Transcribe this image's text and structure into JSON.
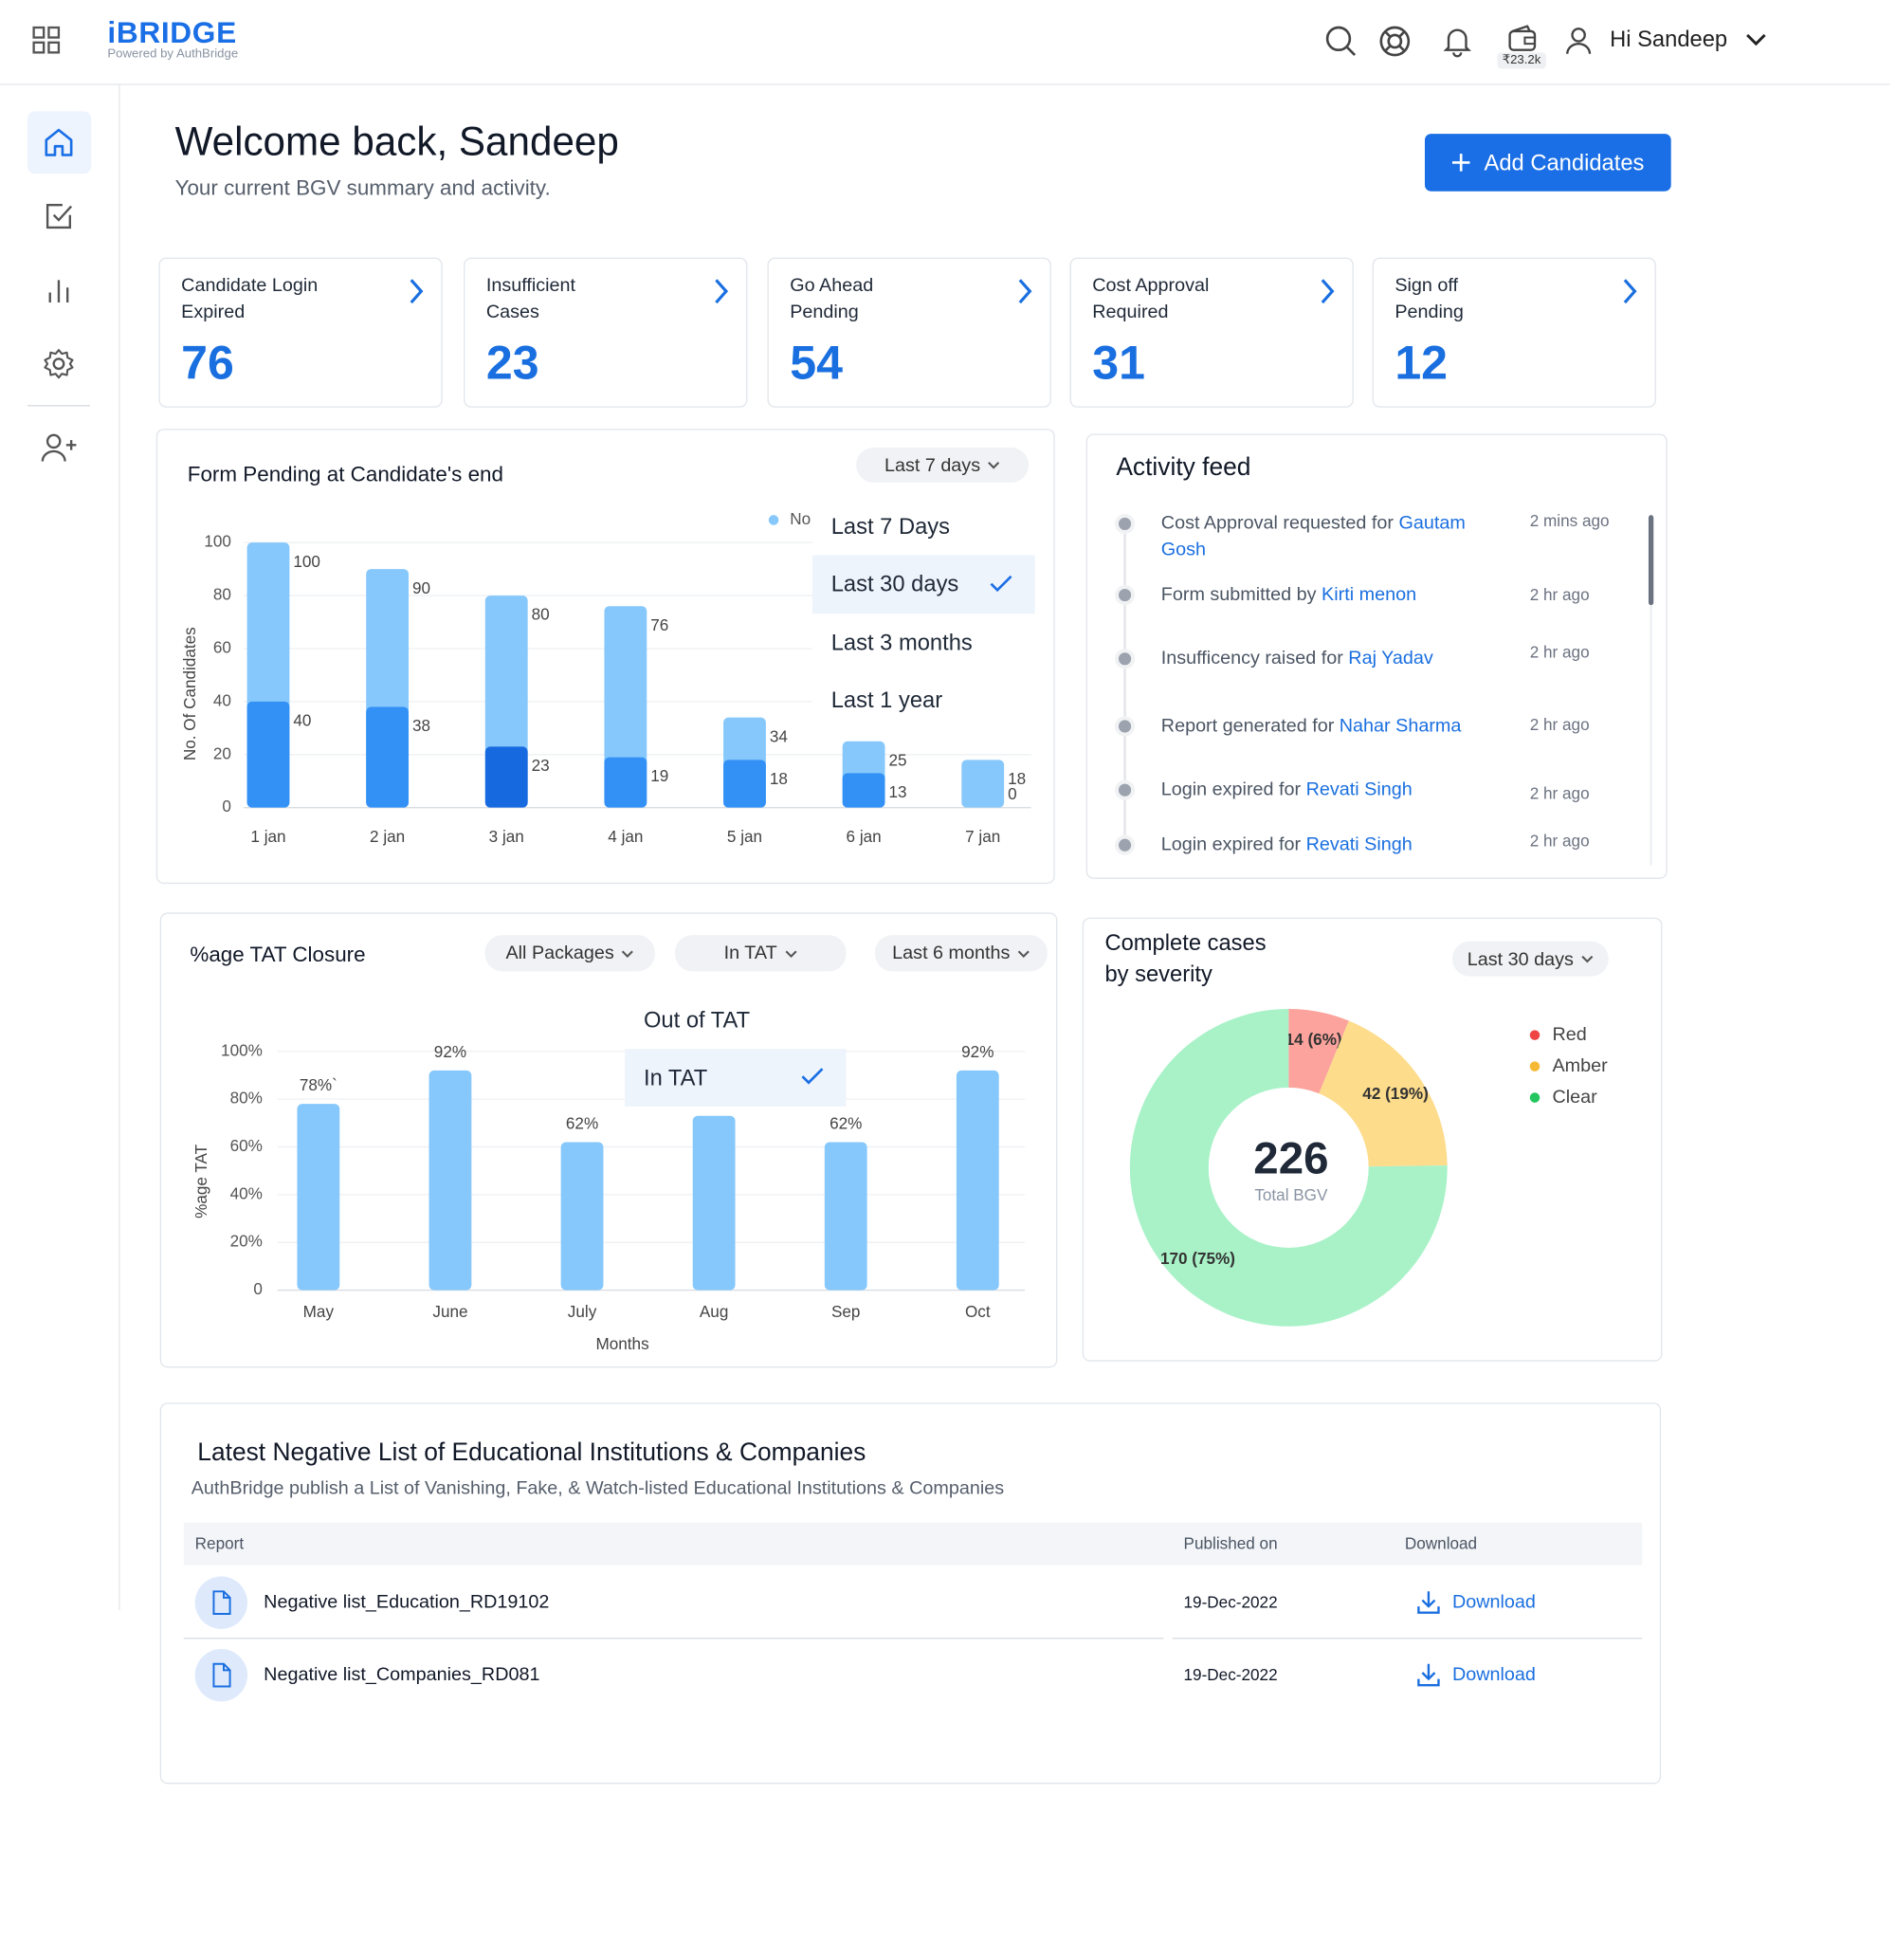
{
  "header": {
    "logo": "iBRIDGE",
    "tagline": "Powered by AuthBridge",
    "wallet_balance": "₹23.2k",
    "greeting": "Hi Sandeep"
  },
  "welcome": {
    "title": "Welcome back, Sandeep",
    "subtitle": "Your current BGV summary and activity.",
    "button": "Add Candidates"
  },
  "summary_cards": [
    {
      "label": [
        "Candidate Login",
        "Expired"
      ],
      "value": 76
    },
    {
      "label": [
        "Insufficient",
        "Cases"
      ],
      "value": 23
    },
    {
      "label": [
        "Go Ahead",
        "Pending"
      ],
      "value": 54
    },
    {
      "label": [
        "Cost Approval",
        "Required"
      ],
      "value": 31
    },
    {
      "label": [
        "Sign off",
        "Pending"
      ],
      "value": 12
    }
  ],
  "chart_data": [
    {
      "type": "bar",
      "title": "Form Pending at Candidate's end",
      "filter": "Last 7 days",
      "ylabel": "No. Of Candidates",
      "categories": [
        "1 jan",
        "2 jan",
        "3 jan",
        "4 jan",
        "5 jan",
        "6 jan",
        "7 jan"
      ],
      "series": [
        {
          "name": "No",
          "color": "#86c8fb",
          "values": [
            100,
            90,
            80,
            76,
            34,
            25,
            18
          ]
        },
        {
          "color": "#3391f6",
          "values": [
            40,
            38,
            23,
            19,
            18,
            13,
            0
          ]
        }
      ],
      "highlight": {
        "index": 2,
        "color": "#1769e0"
      },
      "ylim": [
        0,
        100
      ],
      "yticks": [
        0,
        20,
        40,
        60,
        80,
        100
      ],
      "grid": true,
      "legend": "top-right"
    },
    {
      "type": "bar",
      "title": "%age TAT Closure",
      "filters": [
        "All Packages",
        "In TAT",
        "Last 6 months"
      ],
      "ylabel": "%age TAT",
      "xlabel": "Months",
      "categories": [
        "May",
        "June",
        "July",
        "Aug",
        "Sep",
        "Oct"
      ],
      "values": [
        78,
        92,
        62,
        73,
        62,
        92
      ],
      "value_labels": [
        "78%`",
        "92%",
        "62%",
        null,
        "62%",
        "92%"
      ],
      "color": "#86c8fb",
      "ylim": [
        0,
        100
      ],
      "yticks": [
        0,
        {
          "value": 20,
          "label": "20%"
        },
        {
          "value": 40,
          "label": "40%"
        },
        {
          "value": 60,
          "label": "60%"
        },
        {
          "value": 80,
          "label": "80%"
        },
        {
          "value": 100,
          "label": "100%"
        }
      ],
      "grid": true
    },
    {
      "type": "pie",
      "title": "Complete cases by severity",
      "filter": "Last 30 days",
      "total": 226,
      "total_label": "Total BGV",
      "categories": [
        "Red",
        "Amber",
        "Clear"
      ],
      "values": [
        14,
        42,
        170
      ],
      "value_labels": [
        "14 (6%)",
        "42 (19%)",
        "170 (75%)"
      ],
      "colors": [
        "#fba39c",
        "#fddc8c",
        "#a9f2c8"
      ],
      "legend_colors": [
        "#ef4444",
        "#f5b935",
        "#22c55e"
      ],
      "donut": true
    }
  ],
  "form_pending_menu": {
    "options": [
      "Last 7 Days",
      "Last 30 days",
      "Last 3 months",
      "Last 1 year"
    ],
    "selected": 1
  },
  "tat_menu": {
    "options": [
      "Out of TAT",
      "In TAT"
    ],
    "selected": 1
  },
  "activity_feed": {
    "title": "Activity feed",
    "items": [
      {
        "text": "Cost Approval requested for",
        "name": "Gautam Gosh",
        "time": "2 mins ago"
      },
      {
        "text": "Form submitted by",
        "name": "Kirti menon",
        "time": "2 hr ago"
      },
      {
        "text": "Insufficency raised for",
        "name": "Raj Yadav",
        "time": "2 hr ago"
      },
      {
        "text": "Report generated for",
        "name": "Nahar Sharma",
        "time": "2 hr ago"
      },
      {
        "text": "Login expired for",
        "name": "Revati  Singh",
        "time": "2 hr ago"
      },
      {
        "text": "Login expired for",
        "name": "Revati  Singh",
        "time": "2 hr ago"
      }
    ]
  },
  "negative_list": {
    "title": "Latest Negative List of Educational Institutions & Companies",
    "subtitle": "AuthBridge publish a List of Vanishing, Fake, & Watch-listed Educational Institutions & Companies",
    "columns": [
      "Report",
      "Published on",
      "Download"
    ],
    "rows": [
      {
        "report": "Negative list_Education_RD19102",
        "published_on": "19-Dec-2022",
        "action": "Download"
      },
      {
        "report": "Negative list_Companies_RD081",
        "published_on": "19-Dec-2022",
        "action": "Download"
      }
    ]
  }
}
